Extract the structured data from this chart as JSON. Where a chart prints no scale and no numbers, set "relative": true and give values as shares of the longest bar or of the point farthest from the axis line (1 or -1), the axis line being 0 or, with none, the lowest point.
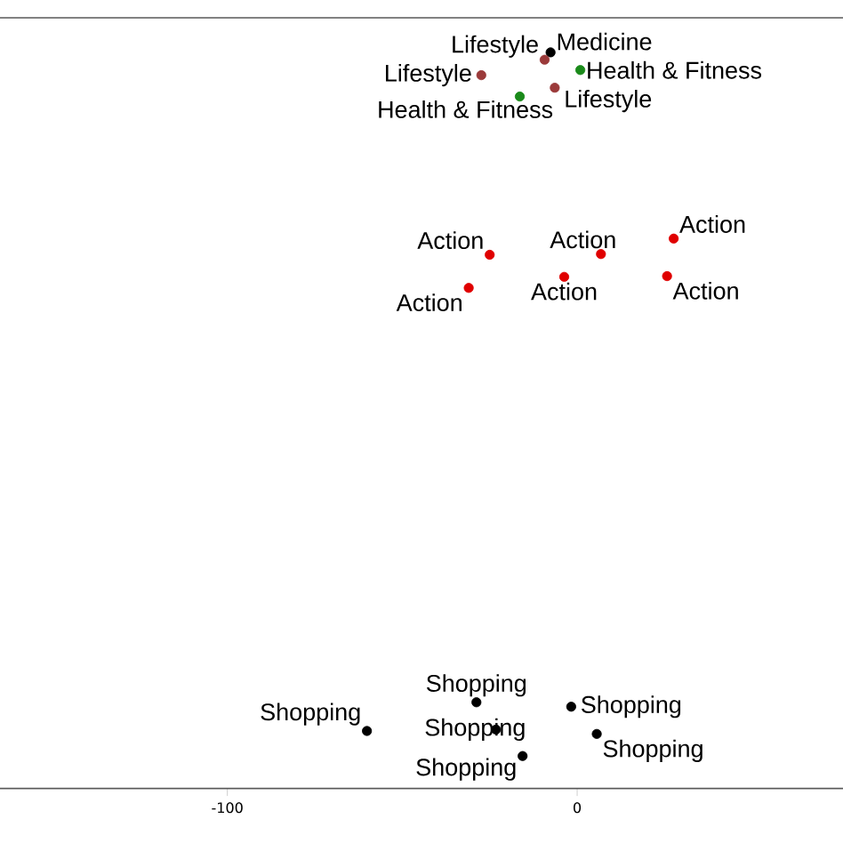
{
  "chart_data": {
    "type": "scatter",
    "relative": true,
    "xlim": [
      -165,
      76
    ],
    "xticks": [
      -100,
      0
    ],
    "marker": "circle",
    "series": [
      {
        "name": "Medicine",
        "color": "#000000",
        "x": [
          -7.6
        ],
        "values": [
          1.0
        ]
      },
      {
        "name": "Lifestyle",
        "color": "#9b3a3a",
        "x": [
          -9.3,
          -27.4,
          -6.4
        ],
        "values": [
          0.99,
          0.969,
          0.952
        ]
      },
      {
        "name": "Health & Fitness",
        "color": "#1a8a1a",
        "x": [
          0.9,
          -16.4
        ],
        "values": [
          0.976,
          0.94
        ]
      },
      {
        "name": "Action",
        "color": "#e00000",
        "x": [
          -25.0,
          -31.0,
          6.8,
          -3.7,
          27.6,
          25.7
        ],
        "values": [
          0.725,
          0.68,
          0.726,
          0.695,
          0.747,
          0.696
        ]
      },
      {
        "name": "Shopping",
        "color": "#000000",
        "x": [
          -60.1,
          -28.8,
          -23.2,
          -15.6,
          -1.7,
          5.6
        ],
        "values": [
          0.078,
          0.117,
          0.08,
          0.044,
          0.111,
          0.074
        ]
      }
    ]
  }
}
